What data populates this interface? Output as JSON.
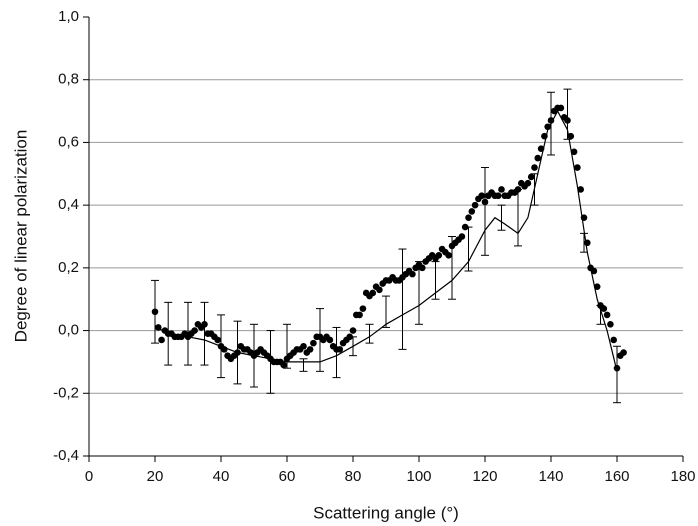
{
  "chart_data": {
    "type": "scatter",
    "xlabel": "Scattering angle (°)",
    "ylabel": "Degree of linear polarization",
    "xlim": [
      0,
      180
    ],
    "ylim": [
      -0.4,
      1.0
    ],
    "xticks": [
      0,
      20,
      40,
      60,
      80,
      100,
      120,
      140,
      160,
      180
    ],
    "yticks": [
      {
        "value": -0.4,
        "label": "-0,4"
      },
      {
        "value": -0.2,
        "label": "-0,2"
      },
      {
        "value": 0,
        "label": "0,0"
      },
      {
        "value": 0.2,
        "label": "0,2"
      },
      {
        "value": 0.4,
        "label": "0,4"
      },
      {
        "value": 0.6,
        "label": "0,6"
      },
      {
        "value": 0.8,
        "label": "0,8"
      },
      {
        "value": 1.0,
        "label": "1,0"
      }
    ],
    "grid": true,
    "color": "#000000",
    "points": {
      "x": [
        20,
        21,
        22,
        23,
        24,
        25,
        26,
        27,
        28,
        29,
        30,
        31,
        32,
        33,
        34,
        35,
        36,
        37,
        38,
        39,
        40,
        41,
        42,
        43,
        44,
        45,
        46,
        47,
        48,
        49,
        50,
        51,
        52,
        53,
        54,
        55,
        56,
        57,
        58,
        59,
        60,
        61,
        62,
        63,
        64,
        65,
        66,
        67,
        68,
        69,
        70,
        71,
        72,
        73,
        74,
        75,
        76,
        77,
        78,
        79,
        80,
        81,
        82,
        83,
        84,
        85,
        86,
        87,
        88,
        89,
        90,
        91,
        92,
        93,
        94,
        95,
        96,
        97,
        98,
        99,
        100,
        101,
        102,
        103,
        104,
        105,
        106,
        107,
        108,
        109,
        110,
        111,
        112,
        113,
        114,
        115,
        116,
        117,
        118,
        119,
        120,
        121,
        122,
        123,
        124,
        125,
        126,
        127,
        128,
        129,
        130,
        131,
        132,
        133,
        134,
        135,
        136,
        137,
        138,
        139,
        140,
        141,
        142,
        143,
        144,
        145,
        146,
        147,
        148,
        149,
        150,
        151,
        152,
        153,
        154,
        155,
        156,
        157,
        158,
        159,
        160,
        161,
        162
      ],
      "values": [
        0.06,
        0.01,
        -0.03,
        0.0,
        -0.01,
        -0.01,
        -0.02,
        -0.02,
        -0.02,
        -0.01,
        -0.02,
        -0.01,
        0.0,
        0.02,
        0.01,
        0.02,
        -0.01,
        -0.01,
        -0.02,
        -0.03,
        -0.05,
        -0.06,
        -0.08,
        -0.09,
        -0.08,
        -0.07,
        -0.05,
        -0.06,
        -0.06,
        -0.07,
        -0.08,
        -0.07,
        -0.06,
        -0.07,
        -0.08,
        -0.09,
        -0.1,
        -0.1,
        -0.1,
        -0.11,
        -0.09,
        -0.08,
        -0.07,
        -0.06,
        -0.06,
        -0.05,
        -0.07,
        -0.06,
        -0.04,
        -0.02,
        -0.02,
        -0.03,
        -0.02,
        -0.03,
        -0.05,
        -0.06,
        -0.06,
        -0.04,
        -0.03,
        -0.02,
        0.0,
        0.05,
        0.05,
        0.07,
        0.12,
        0.11,
        0.12,
        0.14,
        0.13,
        0.15,
        0.16,
        0.16,
        0.17,
        0.16,
        0.16,
        0.17,
        0.18,
        0.19,
        0.18,
        0.2,
        0.21,
        0.2,
        0.22,
        0.23,
        0.24,
        0.23,
        0.24,
        0.26,
        0.25,
        0.24,
        0.27,
        0.28,
        0.29,
        0.3,
        0.33,
        0.36,
        0.38,
        0.4,
        0.42,
        0.43,
        0.41,
        0.43,
        0.44,
        0.43,
        0.43,
        0.45,
        0.43,
        0.43,
        0.44,
        0.44,
        0.45,
        0.47,
        0.46,
        0.47,
        0.49,
        0.52,
        0.55,
        0.58,
        0.62,
        0.65,
        0.67,
        0.7,
        0.71,
        0.71,
        0.68,
        0.67,
        0.62,
        0.57,
        0.52,
        0.45,
        0.36,
        0.28,
        0.2,
        0.19,
        0.14,
        0.08,
        0.07,
        0.05,
        0.02,
        -0.03,
        -0.12,
        -0.08,
        -0.07
      ]
    },
    "model": {
      "x": [
        20,
        25,
        30,
        35,
        40,
        45,
        50,
        55,
        60,
        65,
        70,
        75,
        80,
        85,
        90,
        95,
        100,
        105,
        110,
        115,
        120,
        123,
        126,
        130,
        133,
        136,
        139,
        142,
        145,
        148,
        151,
        154,
        157,
        160
      ],
      "values": [
        0.01,
        -0.01,
        -0.02,
        -0.03,
        -0.05,
        -0.07,
        -0.08,
        -0.09,
        -0.1,
        -0.1,
        -0.1,
        -0.08,
        -0.05,
        -0.02,
        0.02,
        0.05,
        0.08,
        0.12,
        0.16,
        0.22,
        0.32,
        0.36,
        0.34,
        0.31,
        0.36,
        0.5,
        0.64,
        0.7,
        0.64,
        0.46,
        0.25,
        0.1,
        0.0,
        -0.13
      ]
    },
    "errorbars": {
      "x": [
        20,
        24,
        30,
        35,
        40,
        45,
        50,
        55,
        60,
        65,
        70,
        75,
        80,
        85,
        90,
        95,
        100,
        105,
        110,
        115,
        120,
        125,
        130,
        135,
        140,
        145,
        150,
        155,
        160
      ],
      "values": [
        0.06,
        -0.01,
        -0.01,
        -0.01,
        -0.05,
        -0.07,
        -0.08,
        -0.1,
        -0.05,
        -0.11,
        -0.03,
        -0.07,
        -0.05,
        -0.01,
        0.06,
        0.1,
        0.12,
        0.16,
        0.2,
        0.26,
        0.38,
        0.36,
        0.36,
        0.45,
        0.66,
        0.69,
        0.28,
        0.05,
        -0.14
      ],
      "errors": [
        0.1,
        0.1,
        0.1,
        0.1,
        0.1,
        0.1,
        0.1,
        0.1,
        0.07,
        0.02,
        0.1,
        0.08,
        0.03,
        0.03,
        0.05,
        0.16,
        0.1,
        0.06,
        0.1,
        0.07,
        0.14,
        0.04,
        0.09,
        0.05,
        0.1,
        0.08,
        0.03,
        0.03,
        0.09
      ]
    }
  }
}
